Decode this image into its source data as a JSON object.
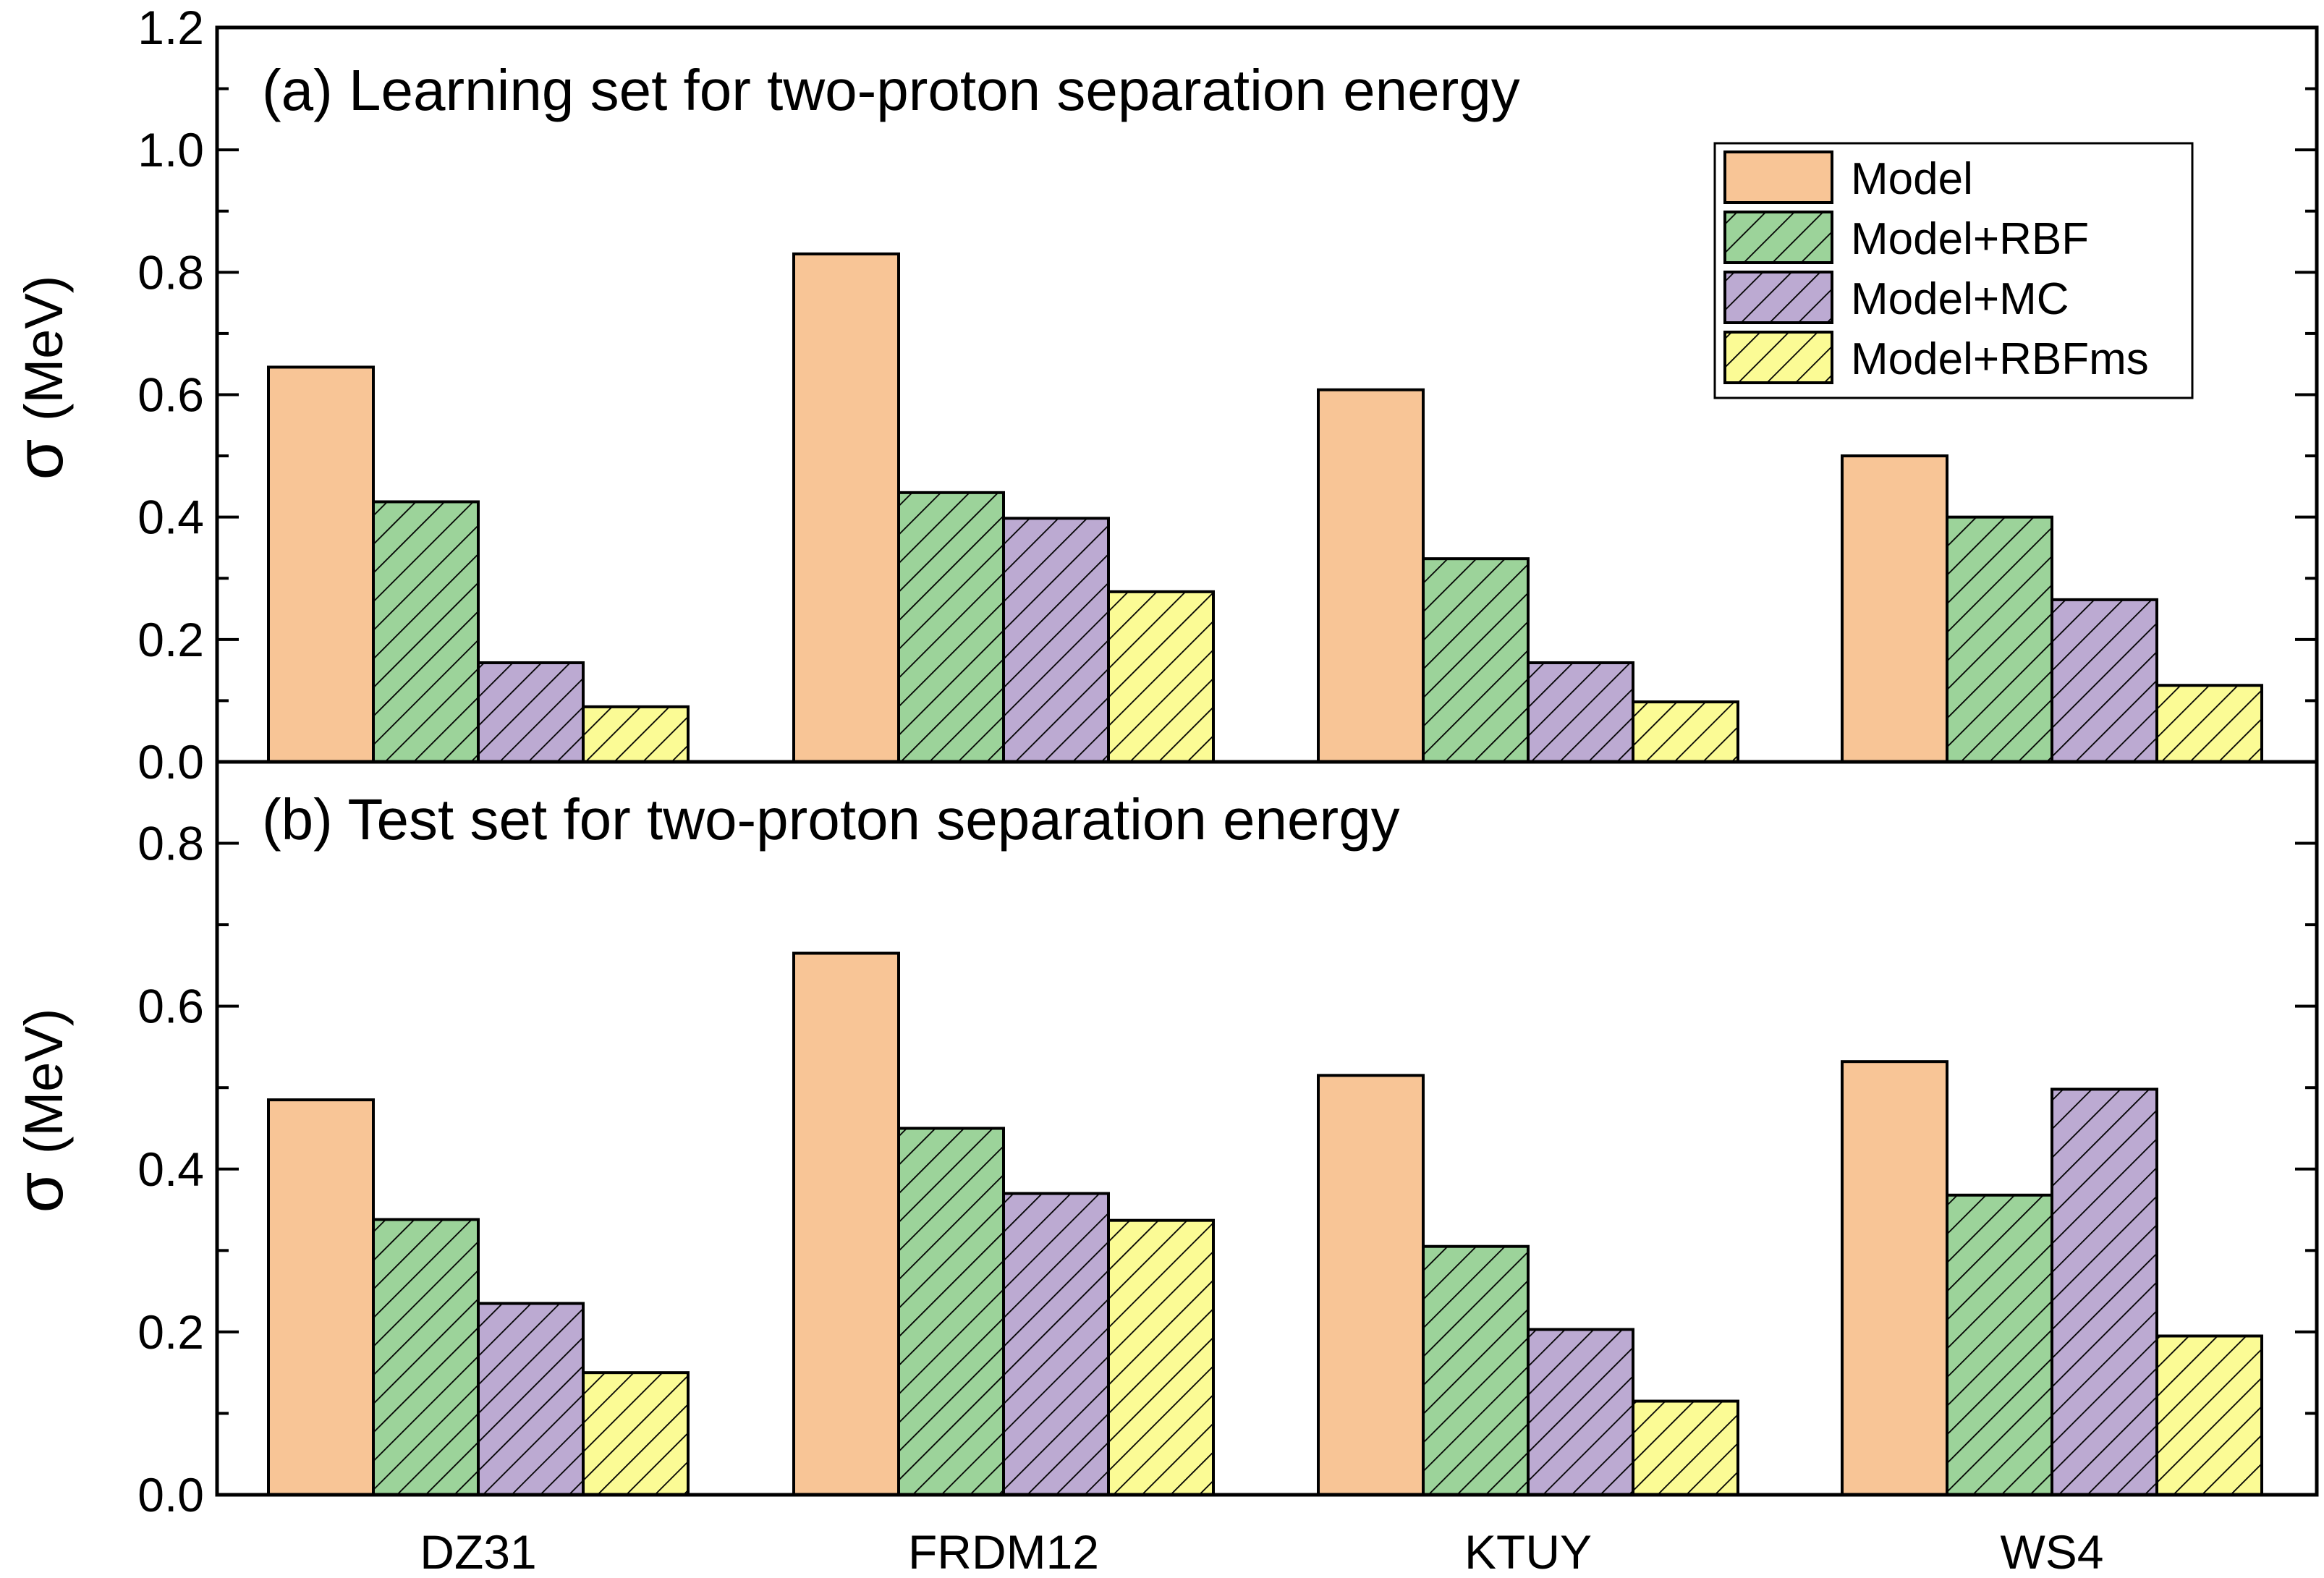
{
  "colors": {
    "Model": "#f8c596",
    "Model+RBF": "#9cd39a",
    "Model+MC": "#bcaad2",
    "Model+RBFms": "#fbfb95",
    "hatch": "#000000",
    "axis": "#000000"
  },
  "legend": {
    "placement": "top-right of panel (a)",
    "entries": [
      {
        "label": "Model",
        "hatch": false
      },
      {
        "label": "Model+RBF",
        "hatch": true
      },
      {
        "label": "Model+MC",
        "hatch": true
      },
      {
        "label": "Model+RBFms",
        "hatch": true
      }
    ]
  },
  "chart_data": [
    {
      "type": "bar",
      "title": "(a) Learning set for two-proton separation energy",
      "ylabel_symbol": "σ",
      "ylabel_unit": "(MeV)",
      "xlabel": "",
      "categories": [
        "DZ31",
        "FRDM12",
        "KTUY",
        "WS4"
      ],
      "ylim": [
        0,
        1.2
      ],
      "yticks": [
        "0.0",
        "0.2",
        "0.4",
        "0.6",
        "0.8",
        "1.0",
        "1.2"
      ],
      "grid": false,
      "series": [
        {
          "name": "Model",
          "values": [
            0.645,
            0.83,
            0.608,
            0.5
          ]
        },
        {
          "name": "Model+RBF",
          "values": [
            0.425,
            0.44,
            0.332,
            0.4
          ]
        },
        {
          "name": "Model+MC",
          "values": [
            0.162,
            0.398,
            0.162,
            0.265
          ]
        },
        {
          "name": "Model+RBFms",
          "values": [
            0.09,
            0.278,
            0.098,
            0.125
          ]
        }
      ]
    },
    {
      "type": "bar",
      "title": "(b) Test set for two-proton separation energy",
      "ylabel_symbol": "σ",
      "ylabel_unit": "(MeV)",
      "xlabel": "",
      "categories": [
        "DZ31",
        "FRDM12",
        "KTUY",
        "WS4"
      ],
      "ylim": [
        0,
        0.9
      ],
      "yticks": [
        "0.0",
        "0.2",
        "0.4",
        "0.6",
        "0.8"
      ],
      "grid": false,
      "series": [
        {
          "name": "Model",
          "values": [
            0.485,
            0.665,
            0.515,
            0.532
          ]
        },
        {
          "name": "Model+RBF",
          "values": [
            0.338,
            0.45,
            0.305,
            0.368
          ]
        },
        {
          "name": "Model+MC",
          "values": [
            0.235,
            0.37,
            0.203,
            0.498
          ]
        },
        {
          "name": "Model+RBFms",
          "values": [
            0.15,
            0.337,
            0.115,
            0.195
          ]
        }
      ]
    }
  ]
}
